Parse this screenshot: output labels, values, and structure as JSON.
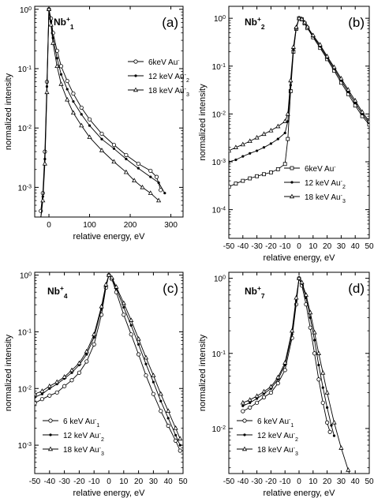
{
  "chart_data": [
    {
      "type": "line",
      "panel_label": "(a)",
      "species": {
        "base": "Nb",
        "sub": "1",
        "sup": "+"
      },
      "xlabel": "relative energy, eV",
      "ylabel": "normalized intensity",
      "xlim": [
        -35,
        330
      ],
      "ylim_log": [
        -3.5,
        0.05
      ],
      "log_y": true,
      "x_ticks": [
        0,
        100,
        200,
        300
      ],
      "y_ticks": [
        {
          "exp": 0,
          "base": "10",
          "sup": "0"
        },
        {
          "exp": -1,
          "base": "10",
          "sup": "-1"
        },
        {
          "exp": -2,
          "base": "10",
          "sup": "-2"
        },
        {
          "exp": -3,
          "base": "10",
          "sup": "-3"
        }
      ],
      "legend_position": "right",
      "series": [
        {
          "legend": {
            "main": "6keV  Au",
            "sub": "",
            "sup": "-"
          },
          "marker": "circle-open",
          "x": [
            -20,
            -15,
            -10,
            -5,
            0,
            5,
            10,
            20,
            30,
            45,
            60,
            80,
            100,
            130,
            160,
            190,
            220,
            250,
            265,
            275
          ],
          "y": [
            0.0004,
            0.0008,
            0.004,
            0.06,
            1.0,
            0.7,
            0.4,
            0.2,
            0.11,
            0.062,
            0.038,
            0.022,
            0.014,
            0.008,
            0.0052,
            0.0035,
            0.0025,
            0.0019,
            0.0015,
            0.0009
          ]
        },
        {
          "legend": {
            "main": "12 keV Au",
            "sub": "2",
            "sup": "-"
          },
          "marker": "dot",
          "x": [
            -20,
            -15,
            -10,
            -5,
            0,
            5,
            10,
            20,
            30,
            45,
            60,
            80,
            100,
            130,
            160,
            190,
            220,
            250,
            270,
            285
          ],
          "y": [
            0.0003,
            0.0007,
            0.003,
            0.05,
            1.0,
            0.62,
            0.33,
            0.15,
            0.08,
            0.045,
            0.028,
            0.017,
            0.011,
            0.0065,
            0.0045,
            0.003,
            0.0021,
            0.0015,
            0.0012,
            0.0008
          ]
        },
        {
          "legend": {
            "main": "18 keV Au",
            "sub": "3",
            "sup": "-"
          },
          "marker": "triangle-open",
          "x": [
            -20,
            -15,
            -10,
            -5,
            0,
            5,
            10,
            20,
            30,
            45,
            60,
            80,
            100,
            130,
            160,
            190,
            210,
            230,
            250,
            270
          ],
          "y": [
            0.0003,
            0.0006,
            0.0025,
            0.04,
            1.0,
            0.55,
            0.27,
            0.11,
            0.055,
            0.03,
            0.018,
            0.011,
            0.007,
            0.0042,
            0.0027,
            0.0018,
            0.0013,
            0.001,
            0.0008,
            0.0006
          ]
        }
      ]
    },
    {
      "type": "line",
      "panel_label": "(b)",
      "species": {
        "base": "Nb",
        "sub": "2",
        "sup": "+"
      },
      "xlabel": "relative energy, eV",
      "ylabel": "normalized intensity",
      "xlim": [
        -50,
        50
      ],
      "ylim_log": [
        -4.6,
        0.25
      ],
      "log_y": true,
      "x_ticks": [
        -50,
        -40,
        -30,
        -20,
        -10,
        0,
        10,
        20,
        30,
        40,
        50
      ],
      "y_ticks": [
        {
          "exp": 0,
          "base": "10",
          "sup": "0"
        },
        {
          "exp": -1,
          "base": "10",
          "sup": "-1"
        },
        {
          "exp": -2,
          "base": "10",
          "sup": "-2"
        },
        {
          "exp": -3,
          "base": "10",
          "sup": "-3"
        },
        {
          "exp": -4,
          "base": "10",
          "sup": "-4"
        }
      ],
      "legend_position": "bottom-right",
      "series": [
        {
          "legend": {
            "main": "6keV  Au",
            "sub": "",
            "sup": "-"
          },
          "marker": "square-open",
          "x": [
            -50,
            -45,
            -40,
            -35,
            -30,
            -25,
            -20,
            -15,
            -10,
            -8,
            -6,
            -4,
            -2,
            0,
            2,
            4,
            6,
            10,
            15,
            20,
            25,
            30,
            35,
            40,
            45,
            50
          ],
          "y": [
            0.0003,
            0.00035,
            0.0004,
            0.00045,
            0.0005,
            0.00055,
            0.0006,
            0.0007,
            0.0009,
            0.003,
            0.03,
            0.2,
            0.6,
            1.0,
            0.95,
            0.78,
            0.62,
            0.4,
            0.24,
            0.14,
            0.08,
            0.045,
            0.026,
            0.015,
            0.009,
            0.006
          ]
        },
        {
          "legend": {
            "main": "12 keV  Au",
            "sub": "2",
            "sup": "-"
          },
          "marker": "dot",
          "x": [
            -50,
            -45,
            -40,
            -35,
            -30,
            -25,
            -20,
            -15,
            -10,
            -8,
            -6,
            -4,
            -2,
            0,
            2,
            4,
            6,
            10,
            15,
            20,
            25,
            30,
            35,
            40,
            45,
            50
          ],
          "y": [
            0.001,
            0.0011,
            0.0013,
            0.0015,
            0.0017,
            0.002,
            0.0024,
            0.003,
            0.004,
            0.007,
            0.04,
            0.22,
            0.62,
            1.0,
            0.95,
            0.8,
            0.64,
            0.42,
            0.26,
            0.15,
            0.088,
            0.05,
            0.029,
            0.017,
            0.01,
            0.0065
          ]
        },
        {
          "legend": {
            "main": "18 keV  Au",
            "sub": "3",
            "sup": "-"
          },
          "marker": "triangle-open",
          "x": [
            -50,
            -45,
            -40,
            -35,
            -30,
            -25,
            -20,
            -15,
            -10,
            -8,
            -6,
            -4,
            -2,
            0,
            2,
            4,
            6,
            10,
            15,
            20,
            25,
            30,
            35,
            40,
            45,
            50
          ],
          "y": [
            0.0017,
            0.002,
            0.0023,
            0.0027,
            0.0032,
            0.0038,
            0.0045,
            0.0055,
            0.007,
            0.01,
            0.05,
            0.25,
            0.65,
            1.0,
            0.96,
            0.82,
            0.66,
            0.44,
            0.28,
            0.16,
            0.095,
            0.055,
            0.032,
            0.019,
            0.011,
            0.007
          ]
        }
      ]
    },
    {
      "type": "line",
      "panel_label": "(c)",
      "species": {
        "base": "Nb",
        "sub": "4",
        "sup": "+"
      },
      "xlabel": "relative energy, eV",
      "ylabel": "normalized intensity",
      "xlim": [
        -50,
        50
      ],
      "ylim_log": [
        -3.5,
        0.05
      ],
      "log_y": true,
      "x_ticks": [
        -50,
        -40,
        -30,
        -20,
        -10,
        0,
        10,
        20,
        30,
        40,
        50
      ],
      "y_ticks": [
        {
          "exp": 0,
          "base": "10",
          "sup": "0"
        },
        {
          "exp": -1,
          "base": "10",
          "sup": "-1"
        },
        {
          "exp": -2,
          "base": "10",
          "sup": "-2"
        },
        {
          "exp": -3,
          "base": "10",
          "sup": "-3"
        }
      ],
      "legend_position": "bottom-left",
      "series": [
        {
          "legend": {
            "main": "6 keV Au",
            "sub": "1",
            "sup": "-"
          },
          "marker": "circle-open",
          "x": [
            -50,
            -45,
            -40,
            -35,
            -30,
            -25,
            -20,
            -15,
            -10,
            -5,
            -2,
            0,
            2,
            5,
            10,
            15,
            20,
            25,
            30,
            35,
            40,
            45,
            48
          ],
          "y": [
            0.0055,
            0.0065,
            0.0075,
            0.0085,
            0.011,
            0.014,
            0.019,
            0.03,
            0.06,
            0.2,
            0.6,
            1.0,
            0.85,
            0.5,
            0.2,
            0.09,
            0.04,
            0.017,
            0.008,
            0.004,
            0.0022,
            0.0012,
            0.0008
          ]
        },
        {
          "legend": {
            "main": "12 keV Au",
            "sub": "2",
            "sup": "-"
          },
          "marker": "dot",
          "x": [
            -50,
            -45,
            -40,
            -35,
            -30,
            -25,
            -20,
            -15,
            -10,
            -5,
            -2,
            0,
            2,
            5,
            10,
            15,
            20,
            25,
            30,
            35,
            40,
            45,
            48
          ],
          "y": [
            0.007,
            0.008,
            0.01,
            0.012,
            0.015,
            0.019,
            0.026,
            0.04,
            0.08,
            0.25,
            0.65,
            1.0,
            0.88,
            0.58,
            0.27,
            0.13,
            0.06,
            0.027,
            0.013,
            0.006,
            0.003,
            0.0015,
            0.001
          ]
        },
        {
          "legend": {
            "main": "18 keV Au",
            "sub": "3",
            "sup": "-"
          },
          "marker": "triangle-open",
          "x": [
            -50,
            -45,
            -40,
            -35,
            -30,
            -25,
            -20,
            -15,
            -10,
            -5,
            -2,
            0,
            2,
            5,
            10,
            15,
            20,
            25,
            30,
            35,
            40,
            45,
            48
          ],
          "y": [
            0.008,
            0.009,
            0.011,
            0.013,
            0.016,
            0.021,
            0.028,
            0.045,
            0.09,
            0.28,
            0.68,
            1.0,
            0.9,
            0.62,
            0.32,
            0.16,
            0.075,
            0.035,
            0.017,
            0.008,
            0.004,
            0.002,
            0.0013
          ]
        }
      ]
    },
    {
      "type": "line",
      "panel_label": "(d)",
      "species": {
        "base": "Nb",
        "sub": "7",
        "sup": "+"
      },
      "xlabel": "relative energy, eV",
      "ylabel": "normalized intensity",
      "xlim": [
        -50,
        50
      ],
      "ylim_log": [
        -2.6,
        0.08
      ],
      "log_y": true,
      "x_ticks": [
        -50,
        -40,
        -30,
        -20,
        -10,
        0,
        10,
        20,
        30,
        40,
        50
      ],
      "y_ticks": [
        {
          "exp": 0,
          "base": "10",
          "sup": "0"
        },
        {
          "exp": -1,
          "base": "10",
          "sup": "-1"
        },
        {
          "exp": -2,
          "base": "10",
          "sup": "-2"
        }
      ],
      "legend_position": "bottom-left",
      "series": [
        {
          "legend": {
            "main": "6 keV Au",
            "sub": "1",
            "sup": "-"
          },
          "marker": "circle-open",
          "x": [
            -40,
            -35,
            -30,
            -25,
            -20,
            -15,
            -10,
            -5,
            -2,
            0,
            2,
            5,
            8,
            11,
            14,
            17,
            20,
            22
          ],
          "y": [
            0.017,
            0.019,
            0.022,
            0.026,
            0.03,
            0.04,
            0.06,
            0.16,
            0.45,
            1.0,
            0.8,
            0.45,
            0.22,
            0.1,
            0.045,
            0.022,
            0.012,
            0.009
          ]
        },
        {
          "legend": {
            "main": "12 keV Au",
            "sub": "2",
            "sup": "-"
          },
          "marker": "dot",
          "x": [
            -40,
            -35,
            -30,
            -25,
            -20,
            -15,
            -10,
            -5,
            -2,
            0,
            2,
            5,
            8,
            11,
            14,
            17,
            20,
            23,
            25
          ],
          "y": [
            0.02,
            0.022,
            0.025,
            0.029,
            0.034,
            0.045,
            0.07,
            0.18,
            0.5,
            1.0,
            0.85,
            0.55,
            0.3,
            0.15,
            0.07,
            0.035,
            0.019,
            0.011,
            0.008
          ]
        },
        {
          "legend": {
            "main": "18 keV Au",
            "sub": "3",
            "sup": "-"
          },
          "marker": "triangle-open",
          "x": [
            -40,
            -35,
            -30,
            -25,
            -20,
            -15,
            -10,
            -5,
            -2,
            0,
            2,
            5,
            8,
            11,
            14,
            17,
            20,
            25,
            30,
            35,
            40,
            45,
            47
          ],
          "y": [
            0.022,
            0.024,
            0.027,
            0.031,
            0.036,
            0.048,
            0.075,
            0.2,
            0.55,
            1.0,
            0.88,
            0.6,
            0.35,
            0.19,
            0.1,
            0.055,
            0.03,
            0.012,
            0.0055,
            0.0028,
            0.0015,
            0.0009,
            0.0007
          ]
        }
      ]
    }
  ]
}
